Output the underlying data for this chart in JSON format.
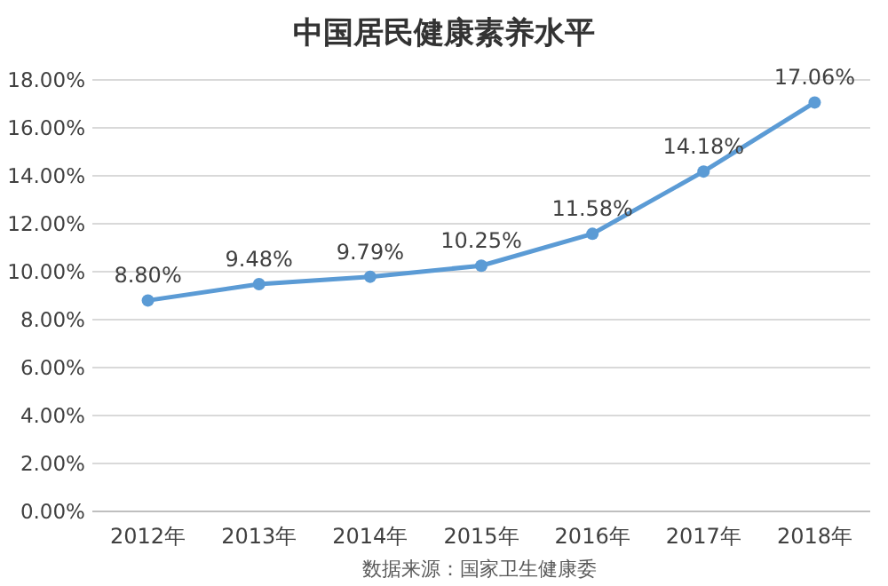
{
  "chart_data": {
    "type": "line",
    "title": "中国居民健康素养水平",
    "annotations": [
      "数据来源：国家卫生健康委"
    ],
    "categories": [
      "2012年",
      "2013年",
      "2014年",
      "2015年",
      "2016年",
      "2017年",
      "2018年"
    ],
    "series": [
      {
        "color": "#5b9bd5",
        "values": [
          8.8,
          9.48,
          9.79,
          10.25,
          11.58,
          14.18,
          17.06
        ],
        "value_labels": [
          "8.80%",
          "9.48%",
          "9.79%",
          "10.25%",
          "11.58%",
          "14.18%",
          "17.06%"
        ]
      }
    ],
    "ylim": [
      0,
      18
    ],
    "yticks": [
      {
        "value": 0,
        "label": "0.00%"
      },
      {
        "value": 2,
        "label": "2.00%"
      },
      {
        "value": 4,
        "label": "4.00%"
      },
      {
        "value": 6,
        "label": "6.00%"
      },
      {
        "value": 8,
        "label": "8.00%"
      },
      {
        "value": 10,
        "label": "10.00%"
      },
      {
        "value": 12,
        "label": "12.00%"
      },
      {
        "value": 14,
        "label": "14.00%"
      },
      {
        "value": 16,
        "label": "16.00%"
      },
      {
        "value": 18,
        "label": "18.00%"
      }
    ],
    "grid": "y",
    "marker": "circle",
    "line_style": "solid"
  }
}
